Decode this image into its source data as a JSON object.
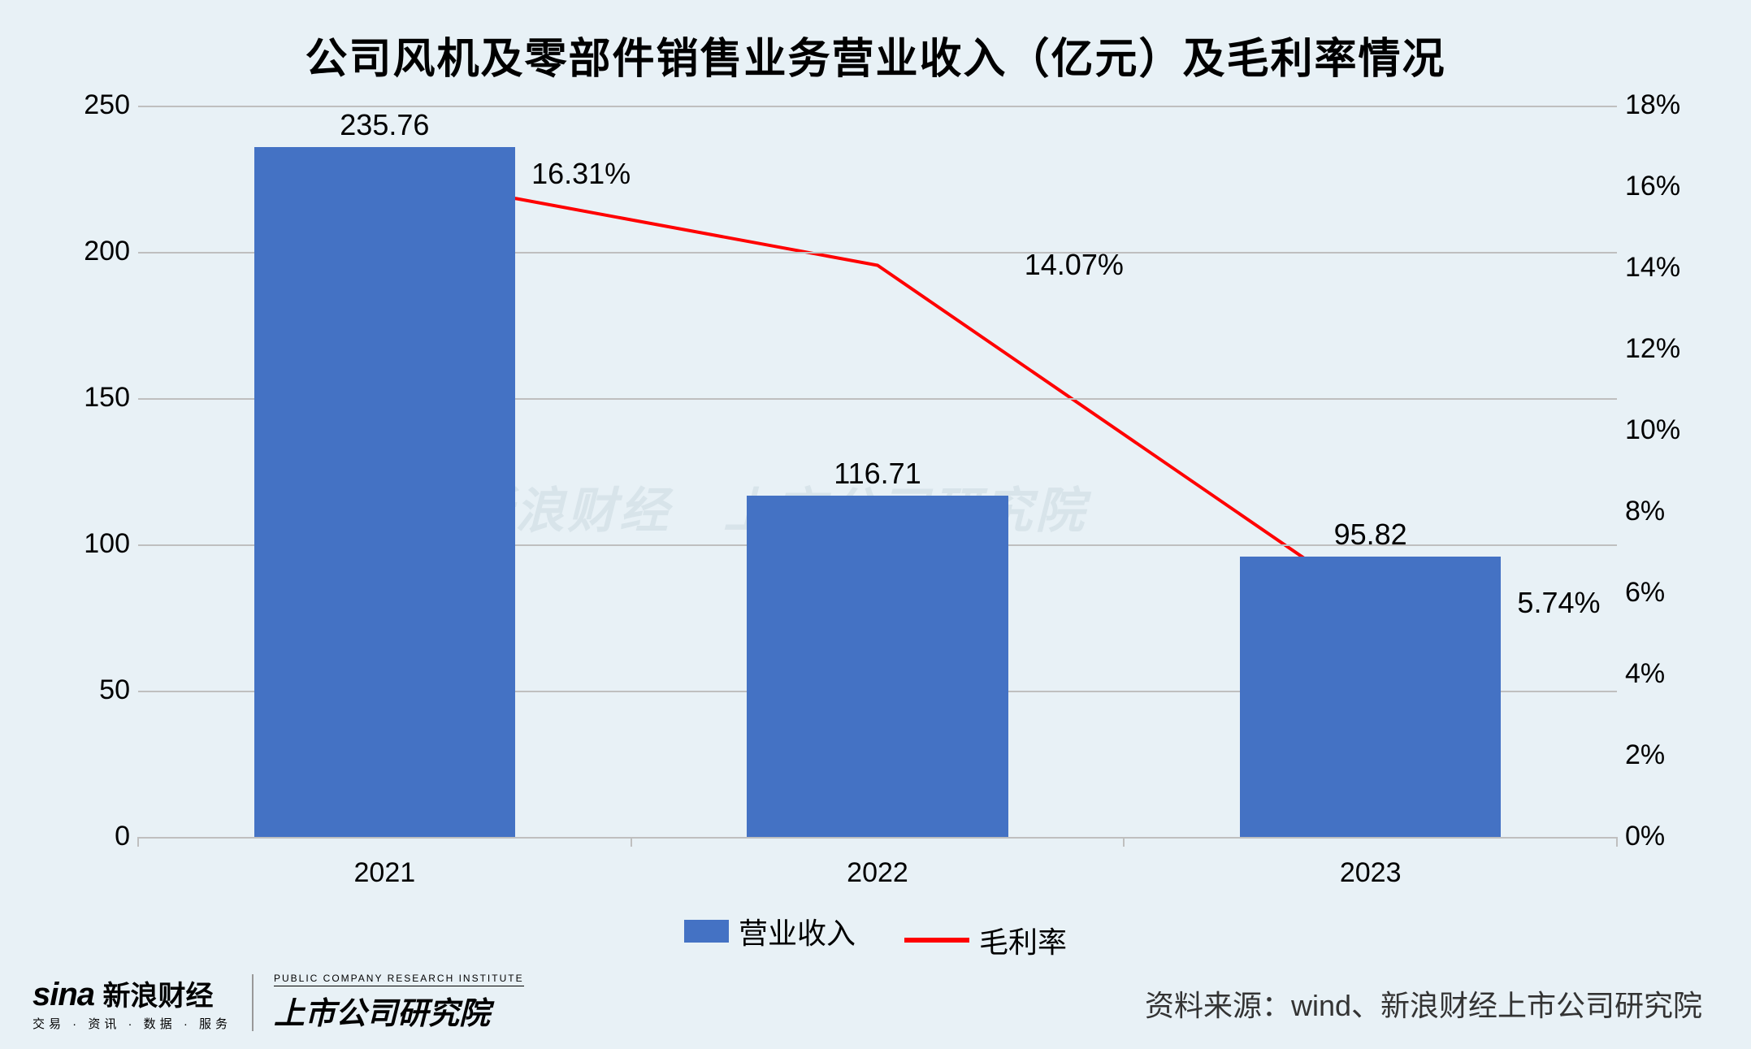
{
  "title": "公司风机及零部件销售业务营业收入（亿元）及毛利率情况",
  "chart": {
    "type": "bar+line",
    "background_color": "#e8f1f6",
    "grid_color": "#bfbfbf",
    "axis_color": "#bfbfbf",
    "text_color": "#000000",
    "label_fontsize": 34,
    "title_fontsize": 52,
    "datalabel_fontsize": 36,
    "categories": [
      "2021",
      "2022",
      "2023"
    ],
    "bars": {
      "name": "营业收入",
      "values": [
        235.76,
        116.71,
        95.82
      ],
      "labels": [
        "235.76",
        "116.71",
        "95.82"
      ],
      "color": "#4472c4",
      "bar_width_frac": 0.53
    },
    "line": {
      "name": "毛利率",
      "values": [
        16.31,
        14.07,
        5.74
      ],
      "labels": [
        "16.31%",
        "14.07%",
        "5.74%"
      ],
      "color": "#ff0000",
      "line_width": 4,
      "marker": "none"
    },
    "y_left": {
      "min": 0,
      "max": 250,
      "step": 50,
      "ticks": [
        "0",
        "50",
        "100",
        "150",
        "200",
        "250"
      ]
    },
    "y_right": {
      "min": 0,
      "max": 18,
      "step": 2,
      "suffix": "%",
      "ticks": [
        "0%",
        "2%",
        "4%",
        "6%",
        "8%",
        "10%",
        "12%",
        "14%",
        "16%",
        "18%"
      ]
    }
  },
  "legend": {
    "items": [
      {
        "type": "bar",
        "label": "营业收入",
        "color": "#4472c4"
      },
      {
        "type": "line",
        "label": "毛利率",
        "color": "#ff0000"
      }
    ]
  },
  "source": "资料来源：wind、新浪财经上市公司研究院",
  "brand": {
    "sina_logo": "sina",
    "sina_cn": "新浪财经",
    "sina_sub": "交易 · 资讯 · 数据 · 服务",
    "inst_sub": "PUBLIC COMPANY RESEARCH INSTITUTE",
    "inst_main": "上市公司研究院"
  },
  "watermark": {
    "text": "新浪财经　上市公司研究院",
    "color": "#d8e4ea"
  }
}
